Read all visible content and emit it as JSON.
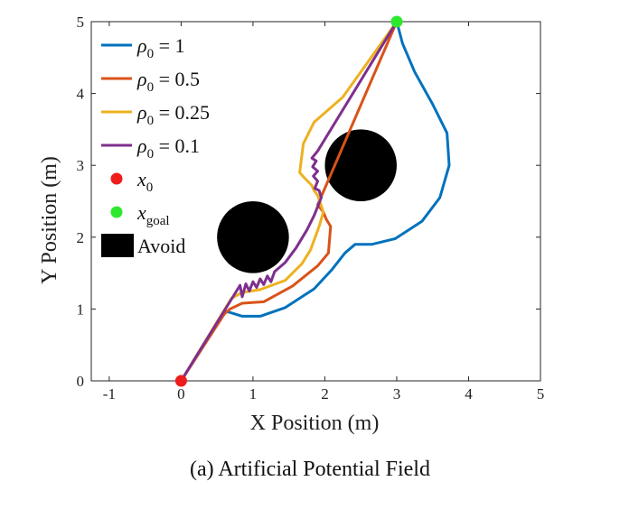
{
  "chart_data": {
    "type": "line",
    "xlabel": "X Position (m)",
    "ylabel": "Y Position (m)",
    "xlim": [
      -1.25,
      5
    ],
    "ylim": [
      0,
      5
    ],
    "xticks": [
      -1,
      0,
      1,
      2,
      3,
      4,
      5
    ],
    "yticks": [
      0,
      1,
      2,
      3,
      4,
      5
    ],
    "caption": "(a) Artificial Potential Field",
    "start": {
      "x": 0,
      "y": 0,
      "color": "#ee1c1c"
    },
    "goal": {
      "x": 3,
      "y": 5,
      "color": "#2ee82e"
    },
    "obstacles": [
      {
        "x": 1.0,
        "y": 2.0,
        "r": 0.5,
        "color": "#000000"
      },
      {
        "x": 2.5,
        "y": 3.0,
        "r": 0.5,
        "color": "#000000"
      }
    ],
    "series": [
      {
        "name": "ρ0 = 1",
        "legend_rho": "ρ",
        "legend_sub": "0",
        "legend_val": " = 1",
        "color": "#0072BD",
        "points": [
          [
            0,
            0
          ],
          [
            0.62,
            0.97
          ],
          [
            0.85,
            0.9
          ],
          [
            1.1,
            0.9
          ],
          [
            1.45,
            1.02
          ],
          [
            1.85,
            1.28
          ],
          [
            2.1,
            1.55
          ],
          [
            2.28,
            1.78
          ],
          [
            2.42,
            1.9
          ],
          [
            2.65,
            1.9
          ],
          [
            2.98,
            1.98
          ],
          [
            3.35,
            2.22
          ],
          [
            3.6,
            2.55
          ],
          [
            3.73,
            3.0
          ],
          [
            3.7,
            3.45
          ],
          [
            3.5,
            3.85
          ],
          [
            3.25,
            4.3
          ],
          [
            3.08,
            4.7
          ],
          [
            3.0,
            5.0
          ]
        ]
      },
      {
        "name": "ρ0 = 0.5",
        "legend_rho": "ρ",
        "legend_sub": "0",
        "legend_val": " = 0.5",
        "color": "#D95319",
        "points": [
          [
            0,
            0
          ],
          [
            0.6,
            0.93
          ],
          [
            0.68,
            1.0
          ],
          [
            0.85,
            1.08
          ],
          [
            1.15,
            1.1
          ],
          [
            1.55,
            1.32
          ],
          [
            1.9,
            1.6
          ],
          [
            2.05,
            1.78
          ],
          [
            2.08,
            2.15
          ],
          [
            2.02,
            2.25
          ],
          [
            1.98,
            2.35
          ],
          [
            1.9,
            2.45
          ],
          [
            3.0,
            5.0
          ]
        ]
      },
      {
        "name": "ρ0 = 0.25",
        "legend_rho": "ρ",
        "legend_sub": "0",
        "legend_val": " = 0.25",
        "color": "#EDB120",
        "points": [
          [
            0,
            0
          ],
          [
            0.7,
            1.15
          ],
          [
            0.85,
            1.23
          ],
          [
            1.1,
            1.27
          ],
          [
            1.45,
            1.4
          ],
          [
            1.68,
            1.63
          ],
          [
            1.8,
            1.82
          ],
          [
            1.92,
            2.15
          ],
          [
            1.98,
            2.35
          ],
          [
            1.9,
            2.58
          ],
          [
            1.85,
            2.65
          ],
          [
            1.82,
            2.72
          ],
          [
            1.72,
            2.82
          ],
          [
            1.65,
            2.9
          ],
          [
            1.7,
            3.3
          ],
          [
            1.85,
            3.6
          ],
          [
            2.25,
            3.95
          ],
          [
            3.0,
            5.0
          ]
        ]
      },
      {
        "name": "ρ0 = 0.1",
        "legend_rho": "ρ",
        "legend_sub": "0",
        "legend_val": " = 0.1",
        "color": "#7E2F8E",
        "points": [
          [
            0,
            0
          ],
          [
            0.82,
            1.33
          ],
          [
            0.85,
            1.17
          ],
          [
            0.9,
            1.35
          ],
          [
            0.95,
            1.25
          ],
          [
            1.0,
            1.38
          ],
          [
            1.05,
            1.3
          ],
          [
            1.1,
            1.42
          ],
          [
            1.15,
            1.34
          ],
          [
            1.2,
            1.46
          ],
          [
            1.25,
            1.38
          ],
          [
            1.3,
            1.52
          ],
          [
            1.45,
            1.65
          ],
          [
            1.6,
            1.85
          ],
          [
            1.75,
            2.1
          ],
          [
            1.85,
            2.3
          ],
          [
            1.95,
            2.55
          ],
          [
            1.92,
            2.65
          ],
          [
            1.86,
            2.68
          ],
          [
            1.9,
            2.78
          ],
          [
            1.84,
            2.85
          ],
          [
            1.9,
            2.92
          ],
          [
            1.83,
            2.98
          ],
          [
            1.88,
            3.06
          ],
          [
            1.82,
            3.1
          ],
          [
            1.9,
            3.2
          ],
          [
            3.0,
            5.0
          ]
        ]
      }
    ],
    "legend": {
      "placement": "top-left",
      "x0_label": "x",
      "x0_sub": "0",
      "xgoal_label": "x",
      "xgoal_sub": "goal",
      "avoid_label": "Avoid"
    }
  }
}
